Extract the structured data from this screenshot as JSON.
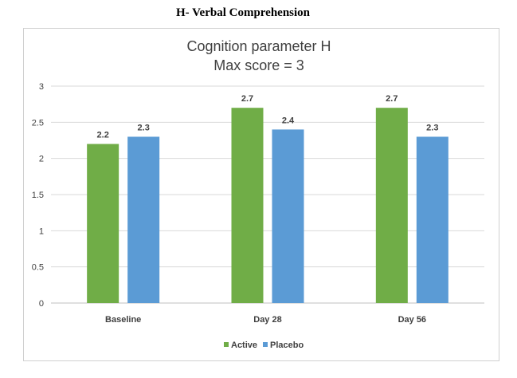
{
  "figure_heading": "H- Verbal Comprehension",
  "colors": {
    "active": "#70ad47",
    "placebo": "#5b9bd5",
    "gridline": "#d9d9d9",
    "axis": "#bfbfbf"
  },
  "chart_data": {
    "type": "bar",
    "title_lines": [
      "Cognition parameter H",
      "Max score = 3"
    ],
    "xlabel": "",
    "ylabel": "",
    "categories": [
      "Baseline",
      "Day 28",
      "Day 56"
    ],
    "series": [
      {
        "name": "Active",
        "values": [
          2.2,
          2.7,
          2.7
        ]
      },
      {
        "name": "Placebo",
        "values": [
          2.3,
          2.4,
          2.3
        ]
      }
    ],
    "data_labels": [
      [
        "2.2",
        "2.7",
        "2.7"
      ],
      [
        "2.3",
        "2.4",
        "2.3"
      ]
    ],
    "ylim": [
      0,
      3
    ],
    "yticks": [
      "0",
      "0.5",
      "1",
      "1.5",
      "2",
      "2.5",
      "3"
    ],
    "grid": true,
    "legend_position": "bottom"
  }
}
